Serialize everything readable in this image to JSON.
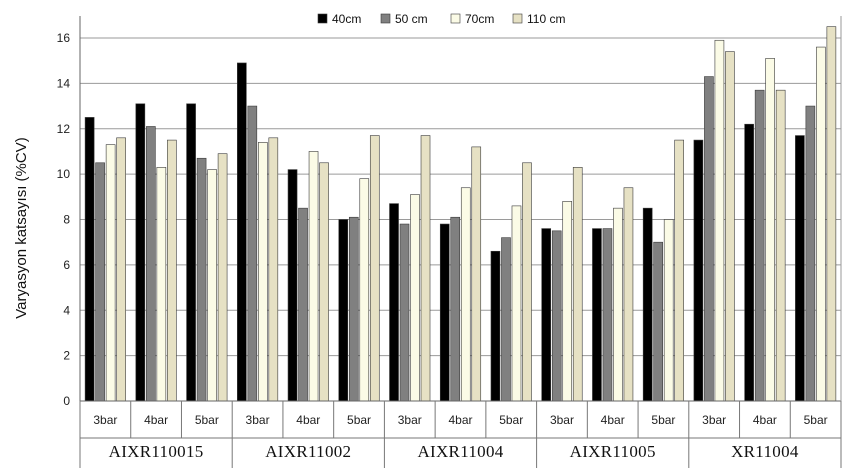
{
  "chart_data": {
    "type": "bar",
    "ylabel": "Varyasyon katsayısı (%CV)",
    "ylim": [
      0,
      16
    ],
    "yticks": [
      0,
      2,
      4,
      6,
      8,
      10,
      12,
      14,
      16
    ],
    "grid": true,
    "legend_position": "top-center",
    "groups": [
      {
        "label": "AIXR110015",
        "pressures": [
          "3bar",
          "4bar",
          "5bar"
        ]
      },
      {
        "label": "AIXR11002",
        "pressures": [
          "3bar",
          "4bar",
          "5bar"
        ]
      },
      {
        "label": "AIXR11004",
        "pressures": [
          "3bar",
          "4bar",
          "5bar"
        ]
      },
      {
        "label": "AIXR11005",
        "pressures": [
          "3bar",
          "4bar",
          "5bar"
        ]
      },
      {
        "label": "XR11004",
        "pressures": [
          "3bar",
          "4bar",
          "5bar"
        ]
      }
    ],
    "series": [
      {
        "name": "40cm",
        "color": "#000000",
        "values": [
          12.5,
          13.1,
          13.1,
          14.9,
          10.2,
          8.0,
          8.7,
          7.8,
          6.6,
          7.6,
          7.6,
          8.5,
          11.5,
          12.2,
          11.7
        ]
      },
      {
        "name": "50 cm",
        "color": "#808080",
        "values": [
          10.5,
          12.1,
          10.7,
          13.0,
          8.5,
          8.1,
          7.8,
          8.1,
          7.2,
          7.5,
          7.6,
          7.0,
          14.3,
          13.7,
          13.0
        ]
      },
      {
        "name": "70cm",
        "color": "#fbfbe6",
        "values": [
          11.3,
          10.3,
          10.2,
          11.4,
          11.0,
          9.8,
          9.1,
          9.4,
          8.6,
          8.8,
          8.5,
          8.0,
          15.9,
          15.1,
          15.6
        ]
      },
      {
        "name": "110 cm",
        "color": "#e6e1c4",
        "values": [
          11.6,
          11.5,
          10.9,
          11.6,
          10.5,
          11.7,
          11.7,
          11.2,
          10.5,
          10.3,
          9.4,
          11.5,
          15.4,
          13.7,
          16.5
        ]
      }
    ]
  }
}
